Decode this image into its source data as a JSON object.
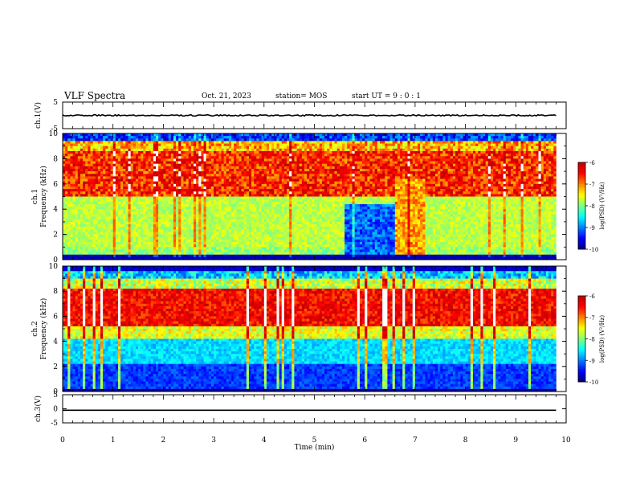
{
  "header": {
    "title": "VLF Spectra",
    "date": "Oct. 21, 2023",
    "station": "station= MOS",
    "start": "start UT =   9 : 0  : 1"
  },
  "chart_data": [
    {
      "type": "line",
      "ylabel": "ch.1(V)",
      "ylim": [
        -5,
        5
      ],
      "yticks": [
        "5",
        "-5"
      ],
      "series": [
        {
          "x": [
            0,
            9.8
          ],
          "values": [
            0,
            0
          ]
        }
      ]
    },
    {
      "type": "heatmap",
      "ylabel": "ch.1\nFrequency (kHz)",
      "xlim": [
        0,
        9.8
      ],
      "ylim": [
        0,
        10
      ],
      "yticks": [
        "0",
        "2",
        "4",
        "6",
        "8",
        "10"
      ],
      "colorbar": {
        "label": "log(PSD) (V²/Hz)",
        "range": [
          -10,
          -6
        ],
        "ticks": [
          "-10",
          "-9",
          "-8",
          "-7",
          "-6"
        ]
      }
    },
    {
      "type": "heatmap",
      "ylabel": "ch.2\nFrequency (kHz)",
      "xlim": [
        0,
        9.8
      ],
      "ylim": [
        0,
        10
      ],
      "yticks": [
        "0",
        "2",
        "4",
        "6",
        "8",
        "10"
      ],
      "colorbar": {
        "label": "log(PSD) (V²/Hz)",
        "range": [
          -10,
          -6
        ],
        "ticks": [
          "-10",
          "-9",
          "-8",
          "-7",
          "-6"
        ]
      }
    },
    {
      "type": "line",
      "ylabel": "ch.3(V)",
      "ylim": [
        -5,
        5
      ],
      "yticks": [
        "5",
        "0",
        "-5"
      ],
      "series": [
        {
          "x": [
            0,
            9.8
          ],
          "values": [
            -0.5,
            -0.5
          ]
        }
      ]
    }
  ],
  "xaxis": {
    "label": "Time (min)",
    "ticks": [
      "0",
      "1",
      "2",
      "3",
      "4",
      "5",
      "6",
      "7",
      "8",
      "9",
      "10"
    ],
    "range": [
      0,
      10
    ]
  }
}
